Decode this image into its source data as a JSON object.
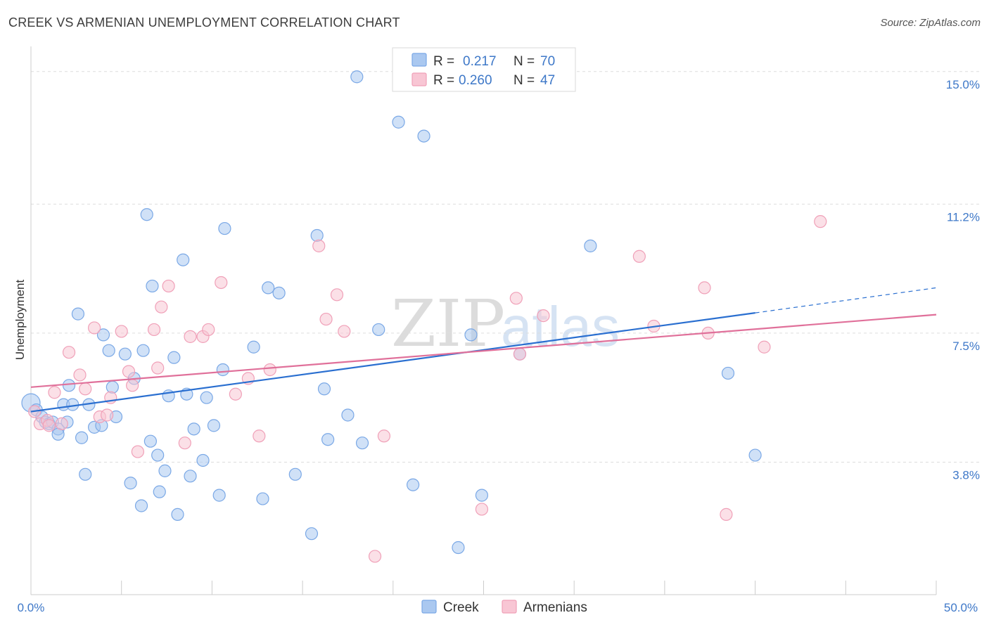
{
  "header": {
    "title": "CREEK VS ARMENIAN UNEMPLOYMENT CORRELATION CHART",
    "source": "Source: ZipAtlas.com"
  },
  "watermark": {
    "part1": "ZIP",
    "part2": "atlas"
  },
  "chart_data": {
    "type": "scatter",
    "ylabel": "Unemployment",
    "xlim": [
      0,
      50
    ],
    "ylim": [
      0,
      15.5
    ],
    "x_tick_labels": [
      "0.0%",
      "50.0%"
    ],
    "y_ticks": [
      3.8,
      7.5,
      11.2,
      15.0
    ],
    "y_tick_labels": [
      "3.8%",
      "7.5%",
      "11.2%",
      "15.0%"
    ],
    "grid": "horizontal dashed",
    "legend_top": {
      "position": "top-center",
      "rows": [
        {
          "r_label": "R =",
          "r_value": "0.217",
          "n_label": "N =",
          "n_value": "70"
        },
        {
          "r_label": "R =",
          "r_value": "0.260",
          "n_label": "N =",
          "n_value": "47"
        }
      ]
    },
    "series": [
      {
        "name": "Creek",
        "color": "#7aa8e6",
        "fill": "#aac8f0",
        "trend_color": "#2a6fd0",
        "trend": {
          "x0": 0,
          "y0": 5.25,
          "x1": 40,
          "y1": 8.08,
          "dash_x1": 50,
          "dash_y1": 8.8
        },
        "points": [
          [
            0.0,
            5.5
          ],
          [
            0.3,
            5.3
          ],
          [
            0.6,
            5.1
          ],
          [
            0.8,
            4.95
          ],
          [
            1.0,
            4.9
          ],
          [
            1.2,
            4.95
          ],
          [
            1.5,
            4.75
          ],
          [
            1.5,
            4.6
          ],
          [
            1.8,
            5.45
          ],
          [
            2.0,
            4.95
          ],
          [
            2.1,
            6.0
          ],
          [
            2.3,
            5.45
          ],
          [
            2.6,
            8.05
          ],
          [
            2.8,
            4.5
          ],
          [
            3.0,
            3.45
          ],
          [
            3.2,
            5.45
          ],
          [
            3.5,
            4.8
          ],
          [
            3.9,
            4.85
          ],
          [
            4.0,
            7.45
          ],
          [
            4.3,
            7.0
          ],
          [
            4.5,
            5.95
          ],
          [
            4.7,
            5.1
          ],
          [
            5.2,
            6.9
          ],
          [
            5.5,
            3.2
          ],
          [
            5.7,
            6.2
          ],
          [
            6.1,
            2.55
          ],
          [
            6.2,
            7.0
          ],
          [
            6.4,
            10.9
          ],
          [
            6.6,
            4.4
          ],
          [
            6.7,
            8.85
          ],
          [
            7.0,
            4.0
          ],
          [
            7.1,
            2.95
          ],
          [
            7.4,
            3.55
          ],
          [
            7.6,
            5.7
          ],
          [
            7.9,
            6.8
          ],
          [
            8.1,
            2.3
          ],
          [
            8.4,
            9.6
          ],
          [
            8.6,
            5.75
          ],
          [
            8.8,
            3.4
          ],
          [
            9.0,
            4.75
          ],
          [
            9.5,
            3.85
          ],
          [
            9.7,
            5.65
          ],
          [
            10.1,
            4.85
          ],
          [
            10.4,
            2.85
          ],
          [
            10.7,
            10.5
          ],
          [
            12.3,
            7.1
          ],
          [
            12.8,
            2.75
          ],
          [
            13.1,
            8.8
          ],
          [
            13.7,
            8.65
          ],
          [
            14.6,
            3.45
          ],
          [
            15.5,
            1.75
          ],
          [
            15.8,
            10.3
          ],
          [
            16.2,
            5.9
          ],
          [
            16.4,
            4.45
          ],
          [
            17.5,
            5.15
          ],
          [
            18.0,
            14.85
          ],
          [
            18.3,
            4.35
          ],
          [
            19.2,
            7.6
          ],
          [
            20.3,
            13.55
          ],
          [
            21.1,
            3.15
          ],
          [
            21.7,
            13.15
          ],
          [
            22.1,
            15.0
          ],
          [
            23.6,
            1.35
          ],
          [
            24.3,
            7.45
          ],
          [
            24.9,
            2.85
          ],
          [
            27.0,
            6.9
          ],
          [
            30.9,
            10.0
          ],
          [
            38.5,
            6.35
          ],
          [
            40.0,
            4.0
          ],
          [
            10.6,
            6.45
          ]
        ]
      },
      {
        "name": "Armenians",
        "color": "#f0a0b8",
        "fill": "#f8c6d4",
        "trend_color": "#e0709a",
        "trend": {
          "x0": 0,
          "y0": 5.95,
          "x1": 50,
          "y1": 8.03
        },
        "points": [
          [
            0.2,
            5.25
          ],
          [
            0.5,
            4.9
          ],
          [
            0.9,
            5.0
          ],
          [
            1.3,
            5.8
          ],
          [
            1.7,
            4.9
          ],
          [
            2.1,
            6.95
          ],
          [
            2.7,
            6.3
          ],
          [
            3.0,
            5.9
          ],
          [
            3.5,
            7.65
          ],
          [
            3.8,
            5.1
          ],
          [
            4.2,
            5.15
          ],
          [
            4.4,
            5.65
          ],
          [
            5.0,
            7.55
          ],
          [
            5.4,
            6.4
          ],
          [
            5.6,
            6.0
          ],
          [
            5.9,
            4.1
          ],
          [
            6.8,
            7.6
          ],
          [
            7.0,
            6.5
          ],
          [
            7.2,
            8.25
          ],
          [
            7.6,
            8.85
          ],
          [
            8.5,
            4.35
          ],
          [
            8.8,
            7.4
          ],
          [
            9.5,
            7.4
          ],
          [
            9.8,
            7.6
          ],
          [
            10.5,
            8.95
          ],
          [
            11.3,
            5.75
          ],
          [
            12.0,
            6.2
          ],
          [
            12.6,
            4.55
          ],
          [
            13.2,
            6.45
          ],
          [
            15.9,
            10.0
          ],
          [
            16.3,
            7.9
          ],
          [
            16.9,
            8.6
          ],
          [
            17.3,
            7.55
          ],
          [
            19.0,
            1.1
          ],
          [
            19.5,
            4.55
          ],
          [
            24.9,
            2.45
          ],
          [
            26.8,
            8.5
          ],
          [
            27.0,
            6.9
          ],
          [
            28.3,
            8.0
          ],
          [
            33.6,
            9.7
          ],
          [
            34.4,
            7.7
          ],
          [
            37.2,
            8.8
          ],
          [
            37.4,
            7.5
          ],
          [
            38.4,
            2.3
          ],
          [
            40.5,
            7.1
          ],
          [
            43.6,
            10.7
          ],
          [
            1.0,
            4.85
          ]
        ]
      }
    ]
  }
}
